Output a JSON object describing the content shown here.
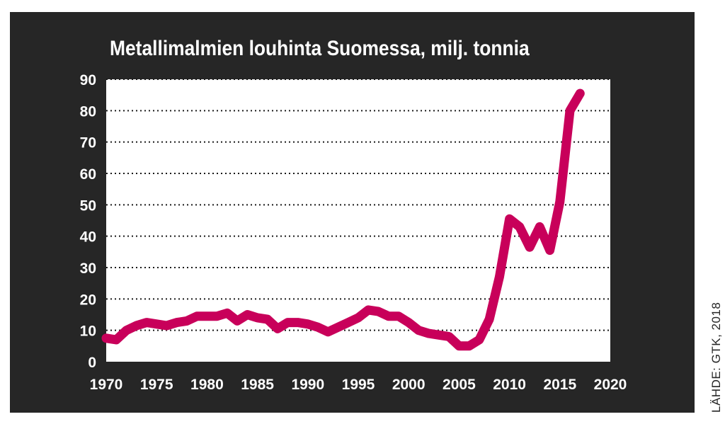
{
  "chart_data": {
    "type": "line",
    "title": "Metallimalmien louhinta Suomessa, milj. tonnia",
    "source": "LÄHDE: GTK, 2018",
    "xlabel": "",
    "ylabel": "",
    "xlim": [
      1970,
      2020
    ],
    "ylim": [
      0,
      90
    ],
    "xticks": [
      1970,
      1975,
      1980,
      1985,
      1990,
      1995,
      2000,
      2005,
      2010,
      2015,
      2020
    ],
    "yticks": [
      0,
      10,
      20,
      30,
      40,
      50,
      60,
      70,
      80,
      90
    ],
    "grid": "horizontal dotted",
    "colors": {
      "line": "#c8005a",
      "background": "#262626",
      "plot_area": "#ffffff",
      "text": "#ffffff"
    },
    "series": [
      {
        "x": [
          1970,
          1971,
          1972,
          1973,
          1974,
          1975,
          1976,
          1977,
          1978,
          1979,
          1980,
          1981,
          1982,
          1983,
          1984,
          1985,
          1986,
          1987,
          1988,
          1989,
          1990,
          1991,
          1992,
          1993,
          1994,
          1995,
          1996,
          1997,
          1998,
          1999,
          2000,
          2001,
          2002,
          2003,
          2004,
          2005,
          2006,
          2007,
          2008,
          2009,
          2010,
          2011,
          2012,
          2013,
          2014,
          2015,
          2016,
          2017
        ],
        "values": [
          7.5,
          7,
          10,
          11.5,
          12.5,
          12,
          11.5,
          12.5,
          13,
          14.5,
          14.5,
          14.5,
          15.5,
          13,
          15,
          14,
          13.5,
          10.5,
          12.5,
          12.5,
          12,
          11,
          9.5,
          11,
          12.5,
          14,
          16.5,
          16,
          14.5,
          14.5,
          12.5,
          10,
          9,
          8.5,
          8,
          5,
          5,
          7,
          13.5,
          27,
          45.5,
          43,
          36.5,
          43,
          35.5,
          51,
          80,
          85.5
        ]
      }
    ]
  }
}
